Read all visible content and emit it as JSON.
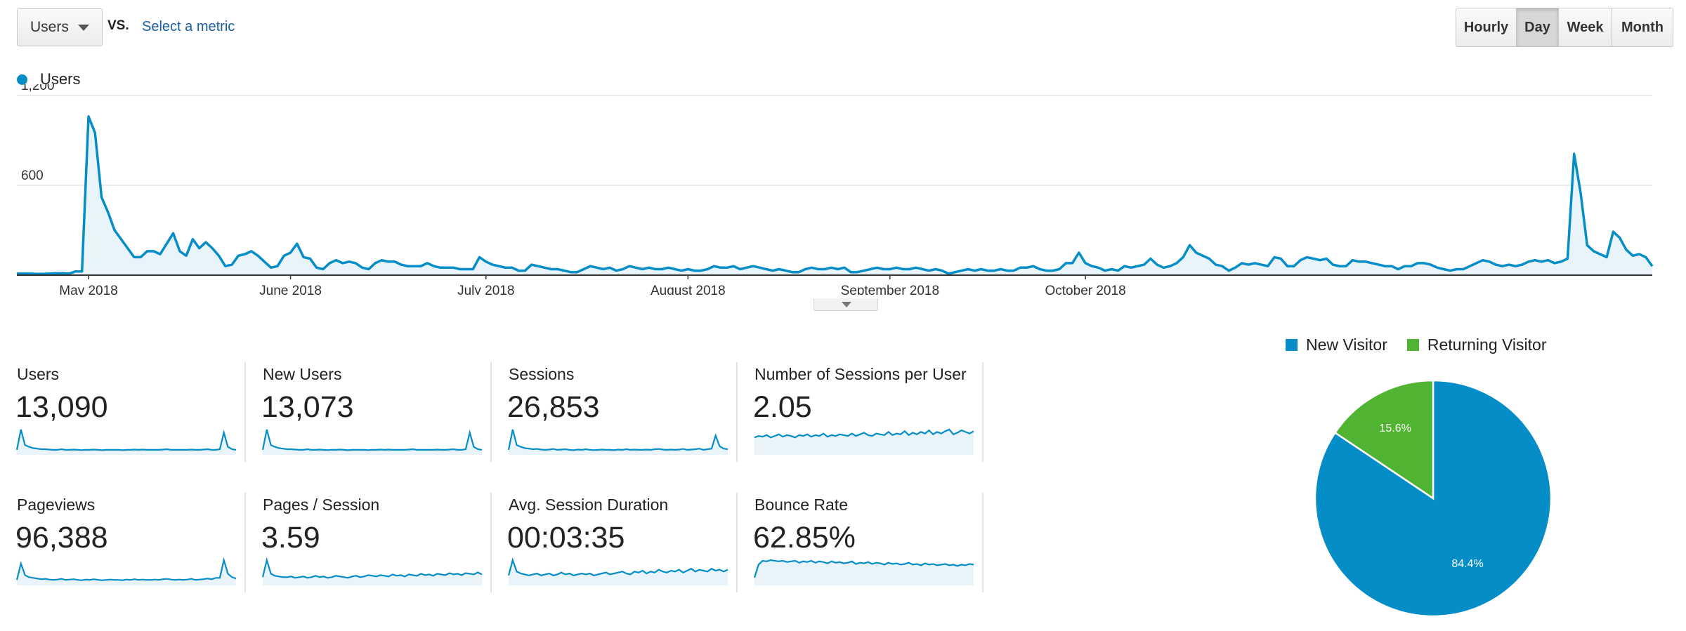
{
  "controls": {
    "metric": "Users",
    "vs_label": "VS.",
    "select_metric": "Select a metric",
    "ranges": [
      "Hourly",
      "Day",
      "Week",
      "Month"
    ],
    "active_range": "Day"
  },
  "chart_data": [
    {
      "type": "area",
      "title": "",
      "series": [
        {
          "name": "Users",
          "color": "#058dc7",
          "values": [
            10,
            10,
            10,
            8,
            8,
            10,
            12,
            12,
            10,
            25,
            25,
            1060,
            950,
            520,
            420,
            300,
            240,
            180,
            120,
            120,
            160,
            160,
            140,
            210,
            280,
            160,
            130,
            240,
            180,
            220,
            180,
            130,
            60,
            70,
            130,
            140,
            160,
            130,
            90,
            50,
            60,
            130,
            150,
            210,
            120,
            110,
            50,
            40,
            80,
            100,
            80,
            90,
            80,
            50,
            40,
            80,
            100,
            90,
            90,
            70,
            60,
            60,
            60,
            80,
            60,
            50,
            50,
            50,
            40,
            40,
            40,
            120,
            90,
            70,
            60,
            50,
            50,
            30,
            30,
            70,
            60,
            50,
            40,
            40,
            30,
            20,
            20,
            40,
            60,
            50,
            40,
            50,
            30,
            40,
            60,
            50,
            40,
            50,
            40,
            40,
            50,
            40,
            30,
            40,
            30,
            30,
            40,
            60,
            50,
            50,
            60,
            40,
            50,
            60,
            50,
            40,
            30,
            40,
            30,
            20,
            20,
            40,
            50,
            40,
            40,
            50,
            40,
            50,
            20,
            20,
            30,
            40,
            50,
            40,
            40,
            50,
            40,
            40,
            50,
            40,
            30,
            40,
            30,
            10,
            20,
            30,
            40,
            30,
            40,
            30,
            30,
            40,
            30,
            30,
            50,
            50,
            60,
            40,
            30,
            30,
            40,
            80,
            80,
            150,
            80,
            60,
            50,
            30,
            40,
            30,
            60,
            50,
            60,
            70,
            110,
            70,
            50,
            60,
            80,
            120,
            200,
            150,
            130,
            110,
            70,
            60,
            30,
            50,
            80,
            70,
            80,
            70,
            60,
            120,
            110,
            60,
            60,
            100,
            120,
            110,
            100,
            110,
            70,
            60,
            60,
            100,
            90,
            90,
            80,
            70,
            60,
            60,
            40,
            60,
            60,
            80,
            80,
            70,
            50,
            40,
            30,
            40,
            40,
            60,
            80,
            100,
            90,
            70,
            60,
            70,
            60,
            70,
            90,
            100,
            90,
            100,
            80,
            90,
            110,
            810,
            550,
            200,
            160,
            140,
            120,
            290,
            250,
            170,
            130,
            140,
            120,
            60
          ]
        }
      ],
      "x_tick_labels": [
        "May 2018",
        "June 2018",
        "July 2018",
        "August 2018",
        "September 2018",
        "October 2018"
      ],
      "y_tick_labels": [
        "1,200",
        "600"
      ],
      "ylim": [
        0,
        1200
      ]
    },
    {
      "type": "pie",
      "series": [
        {
          "name": "New Visitor",
          "value": 84.4,
          "label": "84.4%",
          "color": "#058dc7"
        },
        {
          "name": "Returning Visitor",
          "value": 15.6,
          "label": "15.6%",
          "color": "#50b432"
        }
      ]
    }
  ],
  "scorecards": [
    {
      "label": "Users",
      "value": "13,090",
      "spark": [
        12,
        80,
        28,
        22,
        18,
        16,
        14,
        14,
        13,
        12,
        12,
        14,
        12,
        12,
        13,
        12,
        11,
        12,
        12,
        13,
        12,
        11,
        12,
        12,
        12,
        12,
        11,
        12,
        12,
        13,
        12,
        13,
        12,
        12,
        12,
        12,
        13,
        14,
        12,
        12,
        12,
        12,
        12,
        13,
        12,
        12,
        13,
        14,
        12,
        12,
        14,
        70,
        22,
        14,
        12
      ]
    },
    {
      "label": "New Users",
      "value": "13,073",
      "spark": [
        12,
        80,
        28,
        22,
        18,
        16,
        14,
        14,
        13,
        12,
        12,
        14,
        12,
        12,
        13,
        12,
        11,
        12,
        12,
        13,
        12,
        11,
        12,
        12,
        12,
        12,
        11,
        12,
        12,
        13,
        12,
        13,
        12,
        12,
        12,
        12,
        13,
        14,
        12,
        12,
        12,
        12,
        12,
        13,
        12,
        12,
        13,
        14,
        12,
        12,
        14,
        70,
        22,
        14,
        12
      ]
    },
    {
      "label": "Sessions",
      "value": "26,853",
      "spark": [
        12,
        80,
        28,
        22,
        18,
        16,
        14,
        15,
        13,
        12,
        13,
        15,
        12,
        13,
        14,
        12,
        11,
        13,
        12,
        14,
        12,
        11,
        12,
        13,
        12,
        12,
        11,
        13,
        12,
        14,
        12,
        13,
        12,
        12,
        13,
        12,
        14,
        15,
        13,
        12,
        13,
        12,
        13,
        15,
        12,
        13,
        14,
        16,
        12,
        14,
        16,
        60,
        24,
        16,
        14
      ]
    },
    {
      "label": "Number of Sessions per User",
      "value": "2.05",
      "spark": [
        40,
        44,
        42,
        46,
        40,
        44,
        48,
        42,
        46,
        44,
        40,
        46,
        44,
        48,
        42,
        46,
        44,
        50,
        42,
        46,
        44,
        48,
        46,
        44,
        50,
        44,
        48,
        52,
        46,
        44,
        50,
        48,
        46,
        54,
        46,
        50,
        48,
        56,
        46,
        52,
        48,
        54,
        50,
        58,
        48,
        54,
        50,
        56,
        60,
        48,
        52,
        58,
        54,
        50,
        56
      ]
    },
    {
      "label": "Pageviews",
      "value": "96,388",
      "spark": [
        12,
        60,
        26,
        20,
        18,
        16,
        14,
        15,
        13,
        12,
        13,
        15,
        12,
        13,
        14,
        12,
        11,
        13,
        12,
        14,
        12,
        11,
        12,
        13,
        12,
        12,
        11,
        13,
        12,
        14,
        12,
        13,
        12,
        12,
        13,
        12,
        14,
        15,
        13,
        12,
        13,
        12,
        13,
        15,
        12,
        13,
        14,
        16,
        14,
        18,
        18,
        70,
        30,
        20,
        16
      ]
    },
    {
      "label": "Pages / Session",
      "value": "3.59",
      "spark": [
        20,
        70,
        30,
        24,
        22,
        20,
        20,
        22,
        18,
        20,
        22,
        18,
        20,
        24,
        20,
        22,
        18,
        20,
        24,
        22,
        20,
        18,
        22,
        24,
        20,
        22,
        26,
        24,
        22,
        26,
        24,
        22,
        28,
        24,
        26,
        22,
        28,
        26,
        24,
        30,
        26,
        28,
        24,
        30,
        28,
        26,
        32,
        28,
        30,
        26,
        32,
        30,
        28,
        34,
        28
      ]
    },
    {
      "label": "Avg. Session Duration",
      "value": "00:03:35",
      "spark": [
        18,
        50,
        26,
        22,
        20,
        18,
        20,
        22,
        18,
        20,
        22,
        18,
        20,
        24,
        20,
        22,
        18,
        20,
        22,
        20,
        22,
        18,
        20,
        22,
        24,
        20,
        22,
        24,
        26,
        22,
        20,
        26,
        24,
        28,
        22,
        26,
        24,
        30,
        26,
        24,
        28,
        26,
        30,
        24,
        28,
        32,
        26,
        30,
        28,
        26,
        32,
        28,
        30,
        26,
        30
      ]
    },
    {
      "label": "Bounce Rate",
      "value": "62.85%",
      "spark": [
        20,
        60,
        72,
        70,
        74,
        72,
        70,
        72,
        68,
        70,
        72,
        66,
        70,
        68,
        72,
        66,
        70,
        68,
        64,
        70,
        66,
        68,
        64,
        66,
        70,
        62,
        66,
        64,
        68,
        62,
        66,
        64,
        60,
        66,
        62,
        64,
        60,
        62,
        66,
        60,
        62,
        58,
        64,
        60,
        62,
        58,
        60,
        62,
        58,
        60,
        56,
        60,
        58,
        62,
        60
      ]
    }
  ]
}
